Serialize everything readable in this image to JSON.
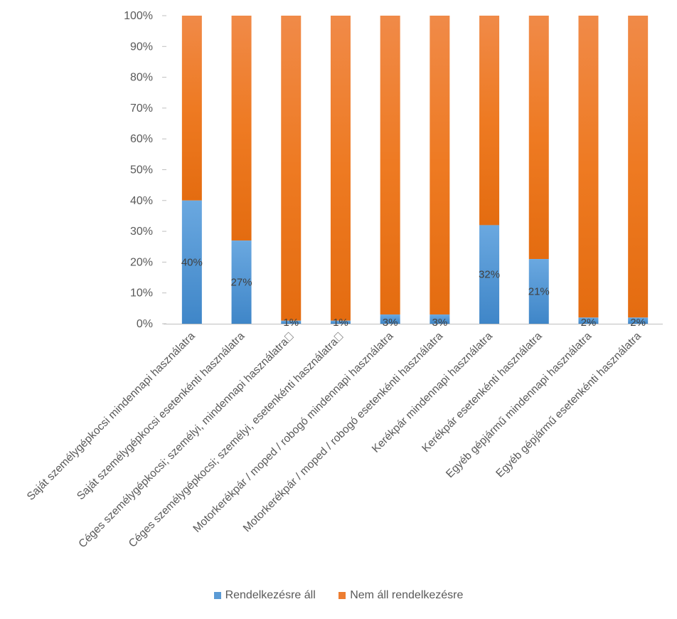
{
  "chart_data": {
    "type": "bar",
    "stacked": true,
    "percent_stacked": true,
    "categories": [
      "Saját személygépkocsi mindennapi használatra",
      "Saját személygépkocsi esetenkénti használatra",
      "Céges személygépkocsi; személyi, mindennapi használatra\u0000",
      "Céges személygépkocsi; személyi, esetenkénti használatra\u0000",
      "Motorkerékpár / moped / robogó mindennapi használatra",
      "Motorkerékpár / moped / robogó esetenkénti használatra",
      "Kerékpár mindennapi használatra",
      "Kerékpár esetenkénti használatra",
      "Egyéb gépjármű mindennapi használatra",
      "Egyéb gépjármű esetenkénti használatra"
    ],
    "series": [
      {
        "name": "Rendelkezésre áll",
        "values": [
          40,
          27,
          1,
          1,
          3,
          3,
          32,
          21,
          2,
          2
        ],
        "color": "#5B9BD5"
      },
      {
        "name": "Nem áll rendelkezésre",
        "values": [
          60,
          73,
          99,
          99,
          97,
          97,
          68,
          79,
          98,
          98
        ],
        "color": "#ED7D31"
      }
    ],
    "data_labels": [
      "40%",
      "27%",
      "1%",
      "1%",
      "3%",
      "3%",
      "32%",
      "21%",
      "2%",
      "2%"
    ],
    "y_ticks": [
      "0%",
      "10%",
      "20%",
      "30%",
      "40%",
      "50%",
      "60%",
      "70%",
      "80%",
      "90%",
      "100%"
    ],
    "ylim": [
      0,
      100
    ],
    "grid": false,
    "legend_position": "bottom"
  }
}
